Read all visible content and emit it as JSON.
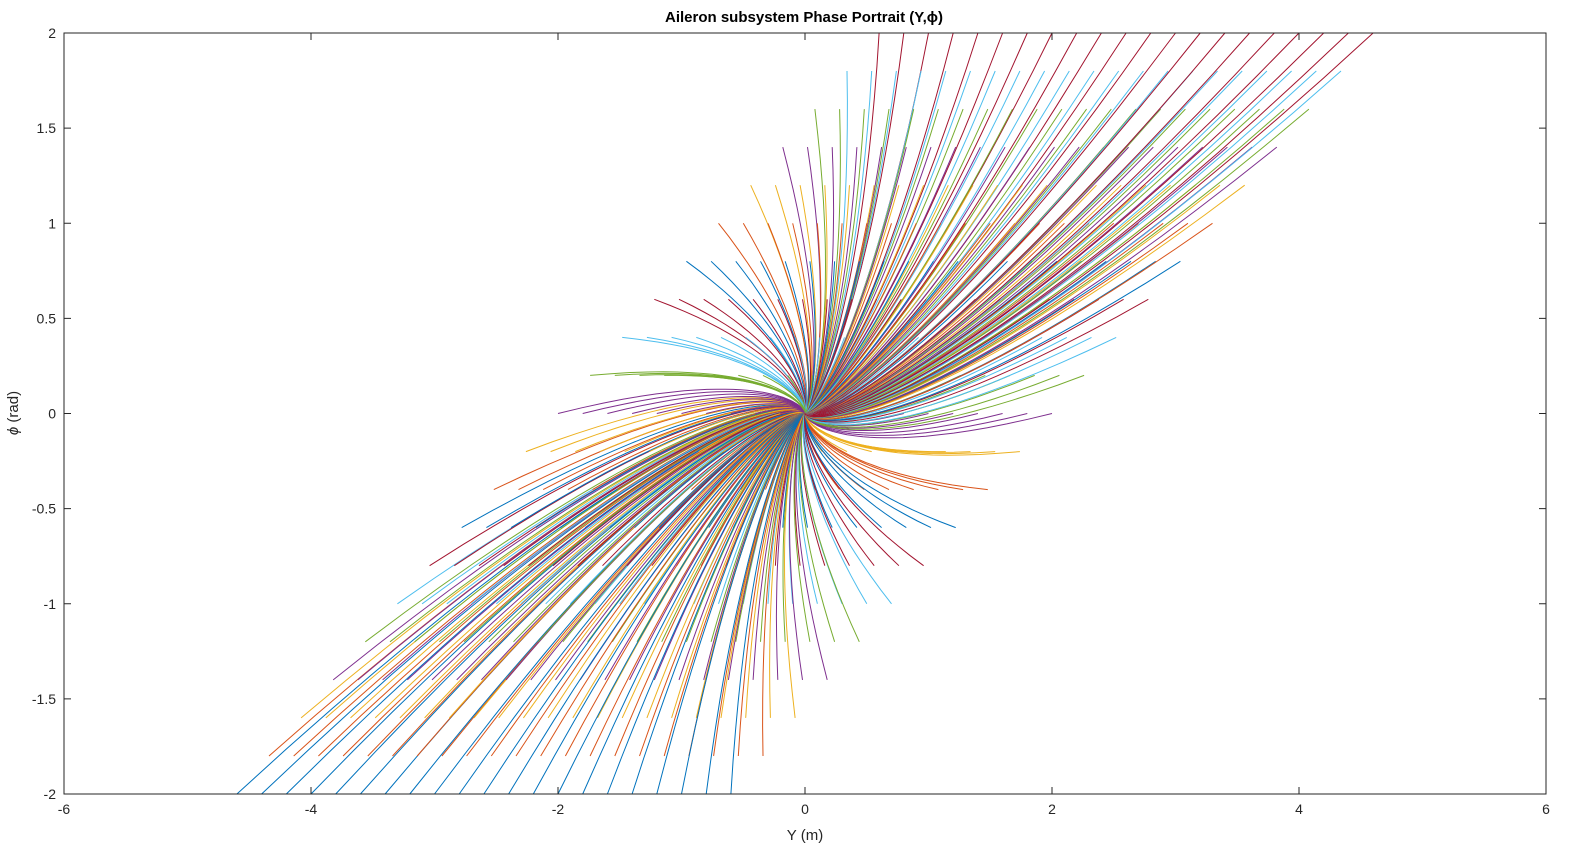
{
  "chart_data": {
    "type": "line",
    "title": "Aileron subsystem Phase Portrait (Y,ϕ)",
    "xlabel": "Y (m)",
    "ylabel_symbol": "ϕ",
    "ylabel_unit": " (rad)",
    "xlim": [
      -6,
      6
    ],
    "ylim": [
      -2,
      2
    ],
    "x_ticks": [
      -6,
      -4,
      -2,
      0,
      2,
      4,
      6
    ],
    "y_ticks": [
      -2,
      -1.5,
      -1,
      -0.5,
      0,
      0.5,
      1,
      1.5,
      2
    ],
    "x_tick_labels": [
      "-6",
      "-4",
      "-2",
      "0",
      "2",
      "4",
      "6"
    ],
    "y_tick_labels": [
      "-2",
      "-1.5",
      "-1",
      "-0.5",
      "0",
      "0.5",
      "1",
      "1.5",
      "2"
    ],
    "grid": false,
    "box": true,
    "equilibrium": [
      0,
      0
    ],
    "series_colors": [
      "#0072BD",
      "#D95319",
      "#EDB120",
      "#7E2F8E",
      "#77AC30",
      "#4DBEEE",
      "#A2142F"
    ],
    "trajectory_start_grid": {
      "y_range": [
        -2,
        2
      ],
      "phi_range": [
        -2,
        2
      ],
      "y_step": 0.2,
      "phi_step": 0.2
    },
    "approx_trajectory_count": 441
  }
}
